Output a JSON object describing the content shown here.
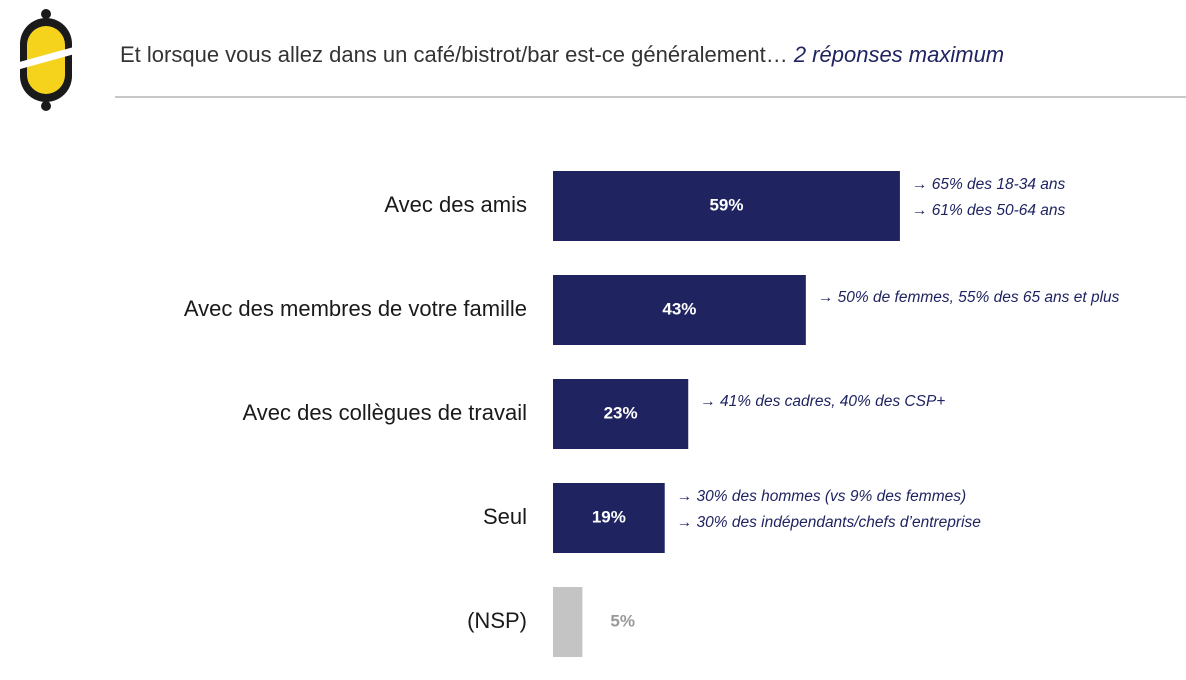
{
  "chart_data": {
    "type": "bar",
    "orientation": "horizontal",
    "title": "Et lorsque vous allez dans un café/bistrot/bar est-ce généralement…",
    "subtitle": "2 réponses maximum",
    "categories": [
      "Avec des amis",
      "Avec des membres de votre famille",
      "Avec des collègues de travail",
      "Seul",
      "(NSP)"
    ],
    "values": [
      59,
      43,
      23,
      19,
      5
    ],
    "value_labels": [
      "59%",
      "43%",
      "23%",
      "19%",
      "5%"
    ],
    "colors": [
      "#1f2461",
      "#1f2461",
      "#1f2461",
      "#1f2461",
      "#c4c4c4"
    ],
    "annotations": [
      [
        "→ 65% des 18-34 ans",
        "→ 61% des 50-64 ans"
      ],
      [
        "→ 50% de femmes, 55% des 65 ans et plus"
      ],
      [
        "→ 41% des cadres, 40% des CSP+"
      ],
      [
        "→ 30% des hommes (vs 9% des femmes)",
        "→ 30% des indépendants/chefs d’entreprise"
      ],
      []
    ]
  }
}
